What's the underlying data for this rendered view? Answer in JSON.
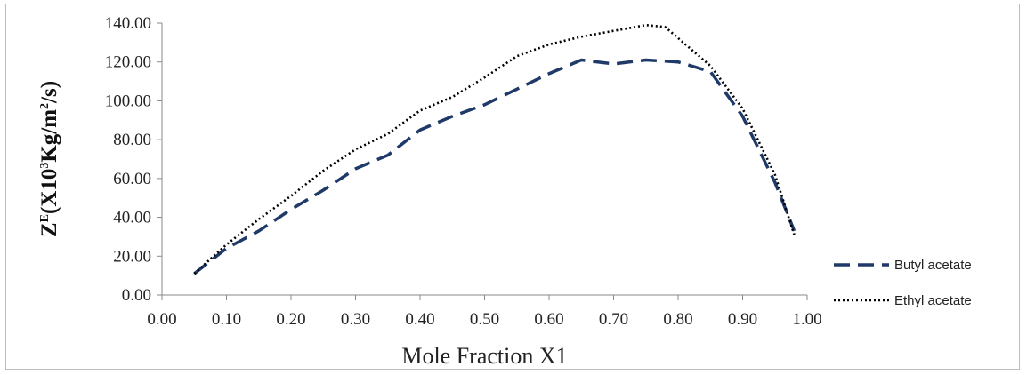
{
  "chart_data": {
    "type": "line",
    "title": "",
    "xlabel": "Mole Fraction X1",
    "ylabel": {
      "parts": [
        {
          "text": "Z",
          "sup": false
        },
        {
          "text": "E",
          "sup": true
        },
        {
          "text": "(X10",
          "sup": false
        },
        {
          "text": "3",
          "sup": true
        },
        {
          "text": "Kg/m",
          "sup": false
        },
        {
          "text": "2",
          "sup": true
        },
        {
          "text": "/s)",
          "sup": false
        }
      ]
    },
    "xlim": [
      0.0,
      1.0
    ],
    "ylim": [
      0.0,
      140.0
    ],
    "x_ticks": [
      "0.00",
      "0.10",
      "0.20",
      "0.30",
      "0.40",
      "0.50",
      "0.60",
      "0.70",
      "0.80",
      "0.90",
      "1.00"
    ],
    "y_ticks": [
      "0.00",
      "20.00",
      "40.00",
      "60.00",
      "80.00",
      "100.00",
      "120.00",
      "140.00"
    ],
    "grid": false,
    "legend_position": "bottom-right",
    "series": [
      {
        "name": "Butyl acetate",
        "style": "dashed",
        "color": "#1f3a68",
        "points": [
          [
            0.05,
            11
          ],
          [
            0.1,
            24
          ],
          [
            0.15,
            33
          ],
          [
            0.2,
            44
          ],
          [
            0.25,
            54
          ],
          [
            0.3,
            65
          ],
          [
            0.35,
            72
          ],
          [
            0.4,
            85
          ],
          [
            0.45,
            92
          ],
          [
            0.5,
            98
          ],
          [
            0.55,
            106
          ],
          [
            0.6,
            114
          ],
          [
            0.65,
            121
          ],
          [
            0.7,
            119
          ],
          [
            0.75,
            121
          ],
          [
            0.8,
            120
          ],
          [
            0.85,
            115
          ],
          [
            0.9,
            92
          ],
          [
            0.95,
            58
          ],
          [
            0.98,
            33
          ]
        ]
      },
      {
        "name": "Ethyl acetate",
        "style": "dotted",
        "color": "#000000",
        "points": [
          [
            0.05,
            11
          ],
          [
            0.1,
            26
          ],
          [
            0.15,
            39
          ],
          [
            0.2,
            51
          ],
          [
            0.25,
            64
          ],
          [
            0.3,
            75
          ],
          [
            0.35,
            83
          ],
          [
            0.4,
            95
          ],
          [
            0.45,
            102
          ],
          [
            0.5,
            112
          ],
          [
            0.55,
            123
          ],
          [
            0.6,
            129
          ],
          [
            0.65,
            133
          ],
          [
            0.7,
            136
          ],
          [
            0.75,
            139
          ],
          [
            0.78,
            138
          ],
          [
            0.85,
            118
          ],
          [
            0.9,
            96
          ],
          [
            0.95,
            62
          ],
          [
            0.98,
            31
          ]
        ]
      }
    ]
  }
}
